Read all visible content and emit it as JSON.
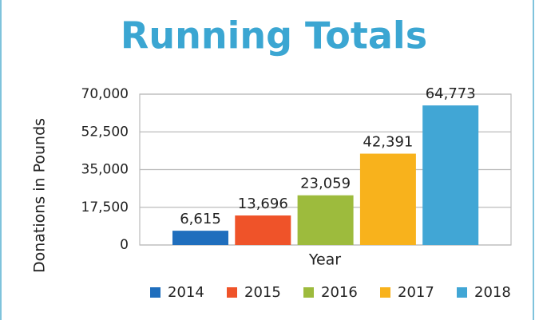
{
  "chart_data": {
    "type": "bar",
    "title": "Running Totals",
    "y_label": "Donations in Pounds",
    "x_label": "Year",
    "categories": [
      "2014",
      "2015",
      "2016",
      "2017",
      "2018"
    ],
    "values": [
      6615,
      13696,
      23059,
      42391,
      64773
    ],
    "value_labels": [
      "6,615",
      "13,696",
      "23,059",
      "42,391",
      "64,773"
    ],
    "colors": [
      "#1f6ebd",
      "#ef5329",
      "#9dbb3d",
      "#f8b21c",
      "#41a6d5"
    ],
    "ylim": [
      0,
      70000
    ],
    "yticks": [
      0,
      {
        "value": 17500,
        "label": "17,500"
      },
      {
        "value": 35000,
        "label": "35,000"
      },
      {
        "value": 52500,
        "label": "52,500"
      },
      {
        "value": 70000,
        "label": "70,000"
      }
    ],
    "grid": true,
    "legend": "bottom"
  }
}
